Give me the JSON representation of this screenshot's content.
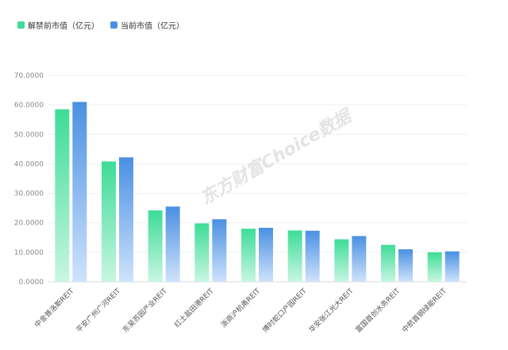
{
  "chart_data": {
    "type": "bar",
    "title": "",
    "xlabel": "",
    "ylabel": "",
    "ylim": [
      0,
      70
    ],
    "yticks": [
      "0.0000",
      "10.0000",
      "20.0000",
      "30.0000",
      "40.0000",
      "50.0000",
      "60.0000",
      "70.0000"
    ],
    "grid": true,
    "legend_position": "top-left",
    "categories": [
      "中金普洛斯REIT",
      "平安广州广河REIT",
      "东吴苏园产业REIT",
      "红土盐田港REIT",
      "浙商沪杭甬REIT",
      "博时蛇口产园REIT",
      "华安张江光大REIT",
      "富国首创水务REIT",
      "中航首钢绿能REIT"
    ],
    "series": [
      {
        "name": "解禁前市值（亿元）",
        "color": "#3ddc97",
        "values": [
          58.5,
          40.8,
          24.2,
          19.8,
          18.0,
          17.4,
          14.4,
          12.5,
          10.0
        ]
      },
      {
        "name": "当前市值（亿元）",
        "color": "#4a90e2",
        "values": [
          61.0,
          42.2,
          25.5,
          21.2,
          18.3,
          17.3,
          15.5,
          11.0,
          10.3
        ]
      }
    ]
  },
  "watermark": "东方财富Choice数据"
}
